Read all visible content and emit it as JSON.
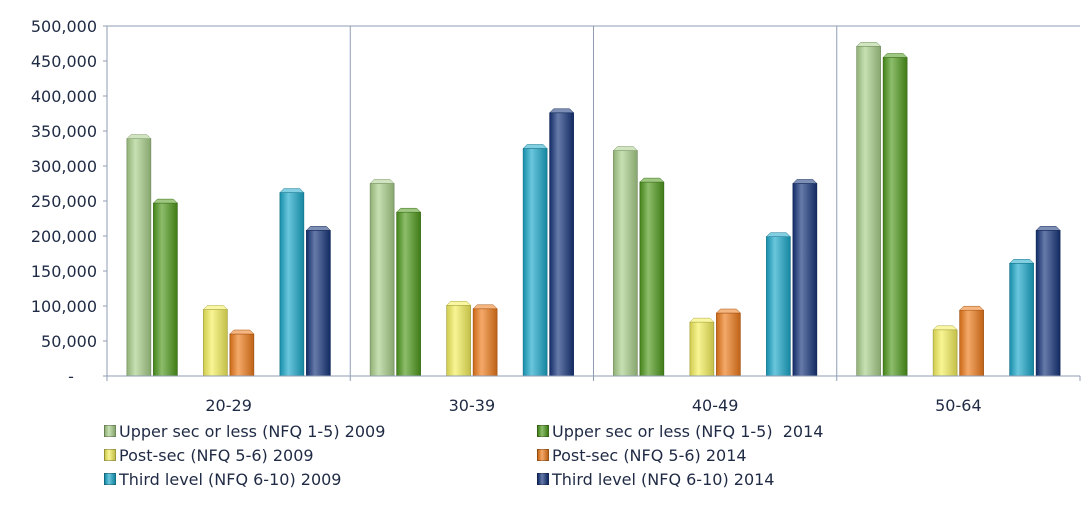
{
  "chart_data": {
    "type": "bar",
    "categories": [
      "20-29",
      "30-39",
      "40-49",
      "50-64"
    ],
    "ylim": [
      0,
      500000
    ],
    "yticks": [
      0,
      50000,
      100000,
      150000,
      200000,
      250000,
      300000,
      350000,
      400000,
      450000,
      500000
    ],
    "ytick_labels": [
      "-",
      "50,000",
      "100,000",
      "150,000",
      "200,000",
      "250,000",
      "300,000",
      "350,000",
      "400,000",
      "450,000",
      "500,000"
    ],
    "grid": "vertical separators between categories",
    "legend_position": "bottom",
    "series": [
      {
        "name": "Upper sec or less (NFQ 1-5) 2009",
        "color": "#a9cf8a",
        "values": [
          339000,
          275000,
          322000,
          471000
        ]
      },
      {
        "name": "Upper sec or less (NFQ 1-5)  2014",
        "color": "#4f9a1c",
        "values": [
          247000,
          234000,
          277000,
          455000
        ]
      },
      {
        "name": "Post-sec (NFQ 5-6) 2009",
        "color": "#f4ef5a",
        "values": [
          95000,
          101000,
          77000,
          66000
        ]
      },
      {
        "name": "Post-sec (NFQ 5-6) 2014",
        "color": "#ee7a1a",
        "values": [
          60000,
          96000,
          90000,
          94000
        ]
      },
      {
        "name": "Third level (NFQ 6-10) 2009",
        "color": "#1aa7c9",
        "values": [
          262000,
          325000,
          199000,
          161000
        ]
      },
      {
        "name": "Third level (NFQ 6-10) 2014",
        "color": "#15347a",
        "values": [
          208000,
          376000,
          275000,
          208000
        ]
      }
    ]
  }
}
